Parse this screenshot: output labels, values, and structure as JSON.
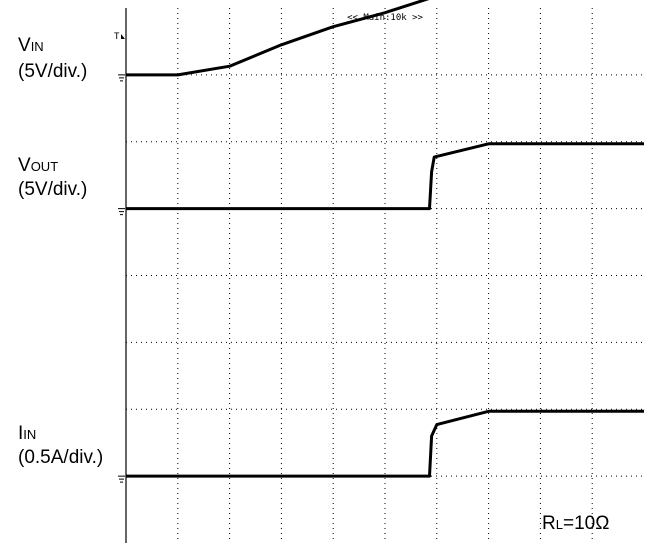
{
  "chart_data": {
    "type": "line",
    "header": "<< Main:10k >>",
    "time_divisions": 10,
    "vertical_divisions": 8,
    "grid": true,
    "x_unit": "div",
    "series": [
      {
        "label_main": "V",
        "label_sub": "IN",
        "scale": "(5V/div.)",
        "ground_div": 1.0,
        "x": [
          0,
          1.0,
          2.0,
          3.0,
          4.0,
          5.0,
          6.0,
          7.0,
          10.0
        ],
        "y_div": [
          0.0,
          0.0,
          0.13,
          0.45,
          0.72,
          0.93,
          1.18,
          1.38,
          1.38
        ]
      },
      {
        "label_main": "V",
        "label_sub": "OUT",
        "scale": "(5V/div.)",
        "ground_div": 3.0,
        "x": [
          0,
          5.86,
          5.9,
          5.95,
          7.0,
          10.0
        ],
        "y_div": [
          0.0,
          0.0,
          0.55,
          0.77,
          0.97,
          0.97
        ]
      },
      {
        "label_main": "I",
        "label_sub": "IN",
        "scale": "(0.5A/div.)",
        "ground_div": 7.0,
        "x": [
          0,
          5.86,
          5.9,
          6.0,
          7.0,
          10.0
        ],
        "y_div": [
          0.0,
          0.0,
          0.6,
          0.77,
          0.97,
          0.97
        ]
      }
    ],
    "annotation_main": "R",
    "annotation_sub": "L",
    "annotation_rest": "=10Ω"
  }
}
